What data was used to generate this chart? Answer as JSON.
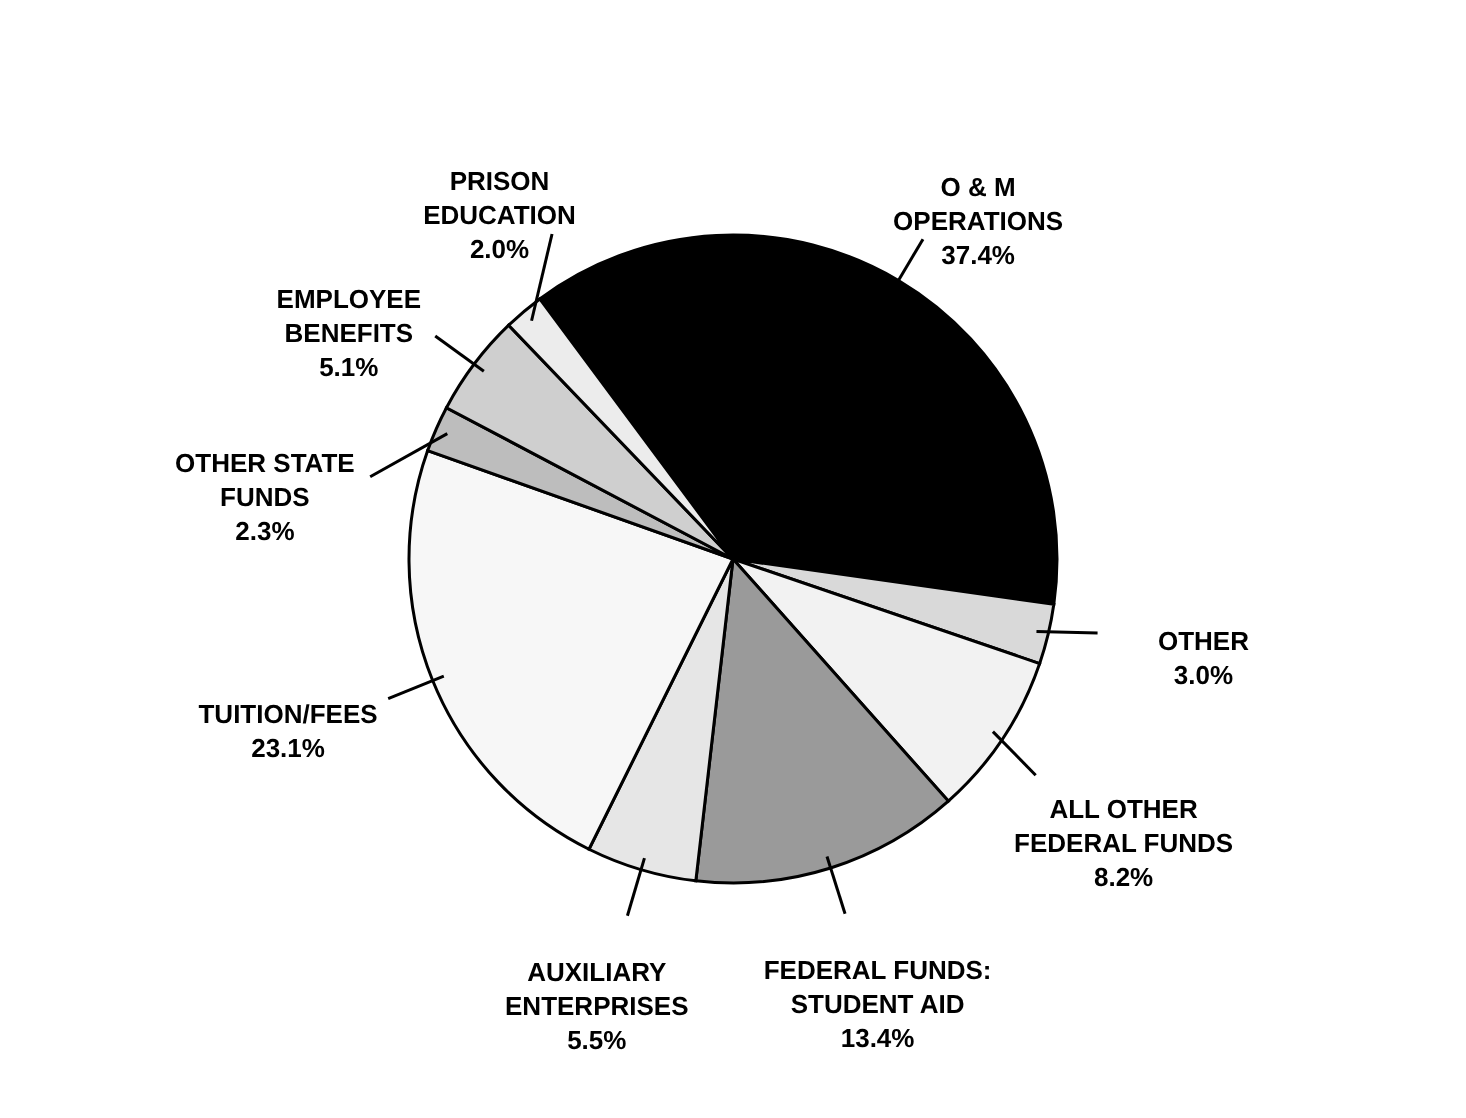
{
  "chart_data": {
    "type": "pie",
    "categories": [
      "O & M OPERATIONS",
      "OTHER",
      "ALL OTHER FEDERAL FUNDS",
      "FEDERAL FUNDS: STUDENT AID",
      "AUXILIARY ENTERPRISES",
      "TUITION/FEES",
      "OTHER STATE FUNDS",
      "EMPLOYEE BENEFITS",
      "PRISON EDUCATION"
    ],
    "values": [
      37.4,
      3.0,
      8.2,
      13.4,
      5.5,
      23.1,
      2.3,
      5.1,
      2.0
    ],
    "colors": [
      "#000000",
      "#d9d9d9",
      "#f2f2f2",
      "#9a9a9a",
      "#e6e6e6",
      "#f7f7f7",
      "#bdbdbd",
      "#cfcfcf",
      "#ececec"
    ],
    "value_labels": [
      "37.4%",
      "3.0%",
      "8.2%",
      "13.4%",
      "5.5%",
      "23.1%",
      "2.3%",
      "5.1%",
      "2.0%"
    ]
  }
}
